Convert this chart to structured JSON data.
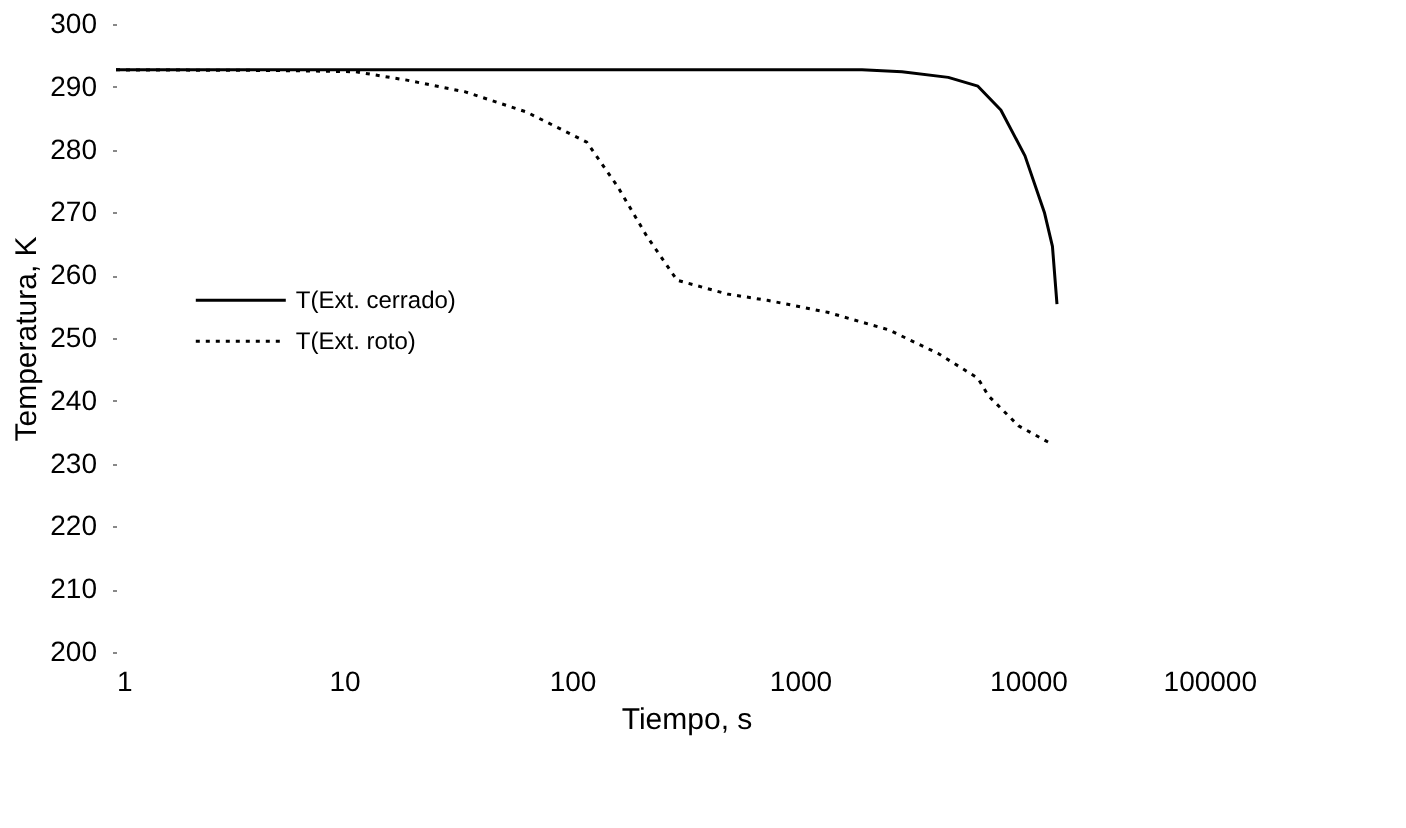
{
  "chart_data": {
    "type": "line",
    "xlabel": "Tiempo, s",
    "ylabel": "Temperatura, K",
    "log": "x",
    "xlim": [
      1,
      100000
    ],
    "xticks": [
      1,
      10,
      100,
      1000,
      10000,
      100000
    ],
    "ylim": [
      200,
      300
    ],
    "yticks": [
      200,
      210,
      220,
      230,
      240,
      250,
      260,
      270,
      280,
      290,
      300
    ],
    "grid": false,
    "legend": "left",
    "series": [
      {
        "name": "T(Ext. cerrado)",
        "color": "#000000",
        "line_style": "solid",
        "x": [
          1,
          100,
          1000,
          1870,
          2800,
          4470,
          6030,
          7600,
          9700,
          11800,
          12800,
          13400
        ],
        "values": [
          292.7,
          292.7,
          292.7,
          292.7,
          292.4,
          291.5,
          290.1,
          286.3,
          279,
          270,
          264.6,
          255.4
        ]
      },
      {
        "name": "T(Ext. roto)",
        "color": "#000000",
        "line_style": "dotted",
        "x": [
          1,
          5,
          11.2,
          18.6,
          34,
          63,
          116,
          158,
          213,
          289,
          480,
          720,
          1320,
          2450,
          4050,
          6030,
          6700,
          9100,
          12300
        ],
        "values": [
          292.7,
          292.6,
          292.4,
          291.1,
          289.2,
          286,
          281.2,
          274.2,
          266.2,
          259.2,
          257,
          256,
          254.1,
          251.3,
          247.5,
          243.6,
          240.8,
          236,
          233.4
        ]
      }
    ]
  }
}
